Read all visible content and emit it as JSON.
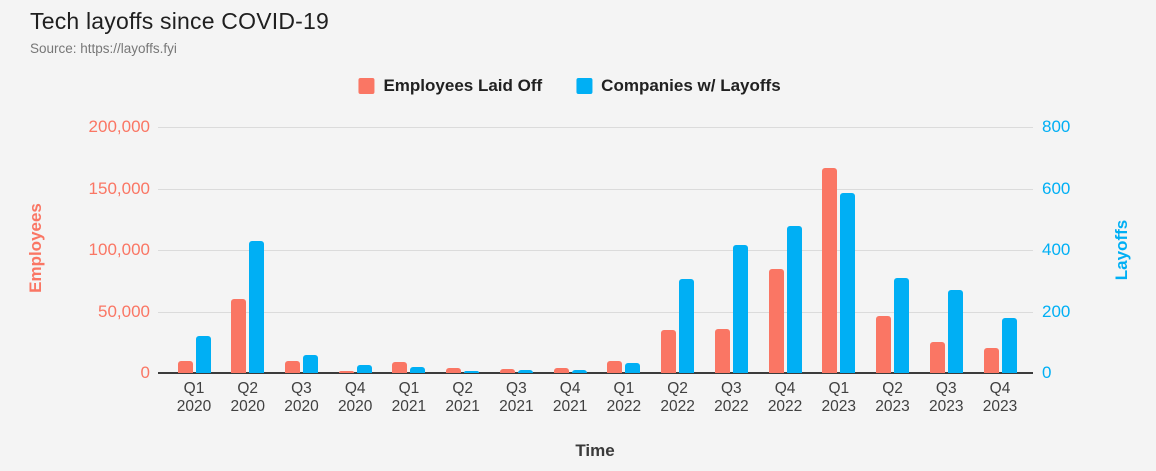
{
  "header": {
    "title": "Tech layoffs since COVID-19",
    "source": "Source: https://layoffs.fyi"
  },
  "legend": [
    {
      "label": "Employees Laid Off",
      "color": "#FA7664"
    },
    {
      "label": "Companies w/ Layoffs",
      "color": "#00AFF4"
    }
  ],
  "axes": {
    "left": {
      "title": "Employees",
      "color": "#FA7664",
      "ticks": [
        "200,000",
        "150,000",
        "100,000",
        "50,000",
        "0"
      ],
      "max": 200000
    },
    "right": {
      "title": "Layoffs",
      "color": "#00AFF4",
      "ticks": [
        "800",
        "600",
        "400",
        "200",
        "0"
      ],
      "max": 800
    },
    "x": {
      "title": "Time"
    }
  },
  "chart_data": {
    "type": "bar",
    "title": "Tech layoffs since COVID-19",
    "xlabel": "Time",
    "ylabel_left": "Employees",
    "ylabel_right": "Layoffs",
    "ylim_left": [
      0,
      200000
    ],
    "ylim_right": [
      0,
      800
    ],
    "grid": true,
    "legend_position": "top",
    "categories": [
      "Q1 2020",
      "Q2 2020",
      "Q3 2020",
      "Q4 2020",
      "Q1 2021",
      "Q2 2021",
      "Q3 2021",
      "Q4 2021",
      "Q1 2022",
      "Q2 2022",
      "Q3 2022",
      "Q4 2022",
      "Q1 2023",
      "Q2 2023",
      "Q3 2023",
      "Q4 2023"
    ],
    "series": [
      {
        "name": "Employees Laid Off",
        "axis": "left",
        "color": "#FA7664",
        "values": [
          9500,
          60000,
          9600,
          2000,
          8800,
          4300,
          3300,
          4300,
          9800,
          35000,
          35500,
          84500,
          167000,
          46000,
          25000,
          20000
        ]
      },
      {
        "name": "Companies w/ Layoffs",
        "axis": "right",
        "color": "#00AFF4",
        "values": [
          120,
          430,
          58,
          26,
          19,
          7,
          11,
          11,
          33,
          305,
          415,
          478,
          585,
          308,
          270,
          180
        ]
      }
    ]
  }
}
